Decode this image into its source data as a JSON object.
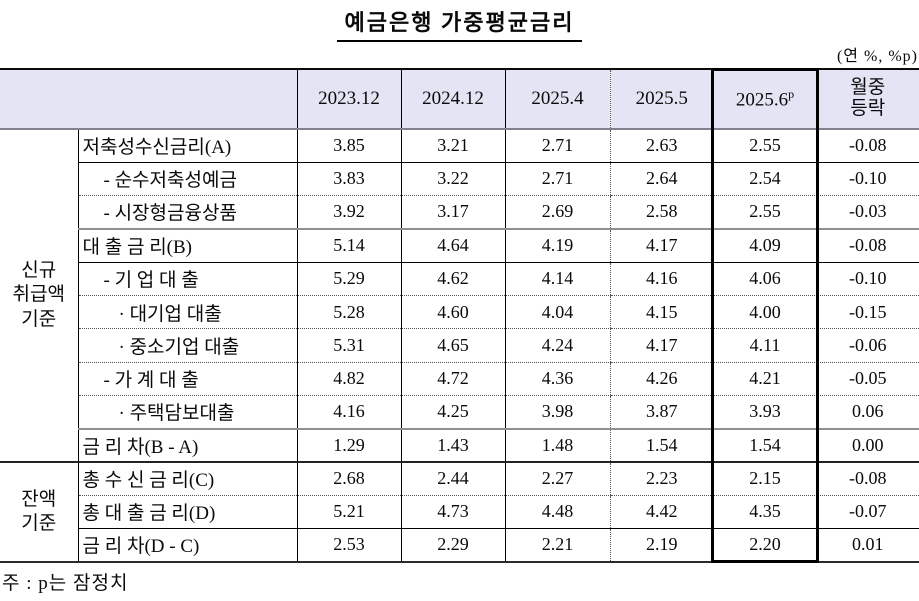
{
  "title": "예금은행 가중평균금리",
  "unit_note": "(연 %, %p)",
  "footnote": "주 : p는 잠정치",
  "table": {
    "col_headers": [
      "2023.12",
      "2024.12",
      "2025.4",
      "2025.5"
    ],
    "col_header_provisional": {
      "text": "2025.6",
      "sup": "p"
    },
    "col_header_change": [
      "월중",
      "등락"
    ],
    "groups": [
      {
        "label_lines": [
          "신규",
          "취급액",
          "기준"
        ],
        "row_span": 10
      },
      {
        "label_lines": [
          "잔액",
          "기준"
        ],
        "row_span": 3
      }
    ],
    "rows": [
      {
        "label": "저축성수신금리(A)",
        "indent": 0,
        "values": [
          "3.85",
          "3.21",
          "2.71",
          "2.63",
          "2.55",
          "-0.08"
        ]
      },
      {
        "label": "- 순수저축성예금",
        "indent": 1,
        "values": [
          "3.83",
          "3.22",
          "2.71",
          "2.64",
          "2.54",
          "-0.10"
        ]
      },
      {
        "label": "- 시장형금융상품",
        "indent": 1,
        "values": [
          "3.92",
          "3.17",
          "2.69",
          "2.58",
          "2.55",
          "-0.03"
        ]
      },
      {
        "label": "대 출 금 리(B)",
        "indent": 0,
        "values": [
          "5.14",
          "4.64",
          "4.19",
          "4.17",
          "4.09",
          "-0.08"
        ]
      },
      {
        "label": "- 기 업 대 출",
        "indent": 1,
        "values": [
          "5.29",
          "4.62",
          "4.14",
          "4.16",
          "4.06",
          "-0.10"
        ]
      },
      {
        "label": "· 대기업 대출",
        "indent": 2,
        "values": [
          "5.28",
          "4.60",
          "4.04",
          "4.15",
          "4.00",
          "-0.15"
        ]
      },
      {
        "label": "· 중소기업 대출",
        "indent": 2,
        "values": [
          "5.31",
          "4.65",
          "4.24",
          "4.17",
          "4.11",
          "-0.06"
        ]
      },
      {
        "label": "- 가 계 대 출",
        "indent": 1,
        "values": [
          "4.82",
          "4.72",
          "4.36",
          "4.26",
          "4.21",
          "-0.05"
        ]
      },
      {
        "label": "· 주택담보대출",
        "indent": 2,
        "values": [
          "4.16",
          "4.25",
          "3.98",
          "3.87",
          "3.93",
          "0.06"
        ]
      },
      {
        "label": "금 리 차(B - A)",
        "indent": 0,
        "values": [
          "1.29",
          "1.43",
          "1.48",
          "1.54",
          "1.54",
          "0.00"
        ]
      },
      {
        "label": "총 수 신 금 리(C)",
        "indent": 0,
        "values": [
          "2.68",
          "2.44",
          "2.27",
          "2.23",
          "2.15",
          "-0.08"
        ]
      },
      {
        "label": "총 대 출 금 리(D)",
        "indent": 0,
        "values": [
          "5.21",
          "4.73",
          "4.48",
          "4.42",
          "4.35",
          "-0.07"
        ]
      },
      {
        "label": "금 리 차(D - C)",
        "indent": 0,
        "values": [
          "2.53",
          "2.29",
          "2.21",
          "2.19",
          "2.20",
          "0.01"
        ]
      }
    ]
  }
}
